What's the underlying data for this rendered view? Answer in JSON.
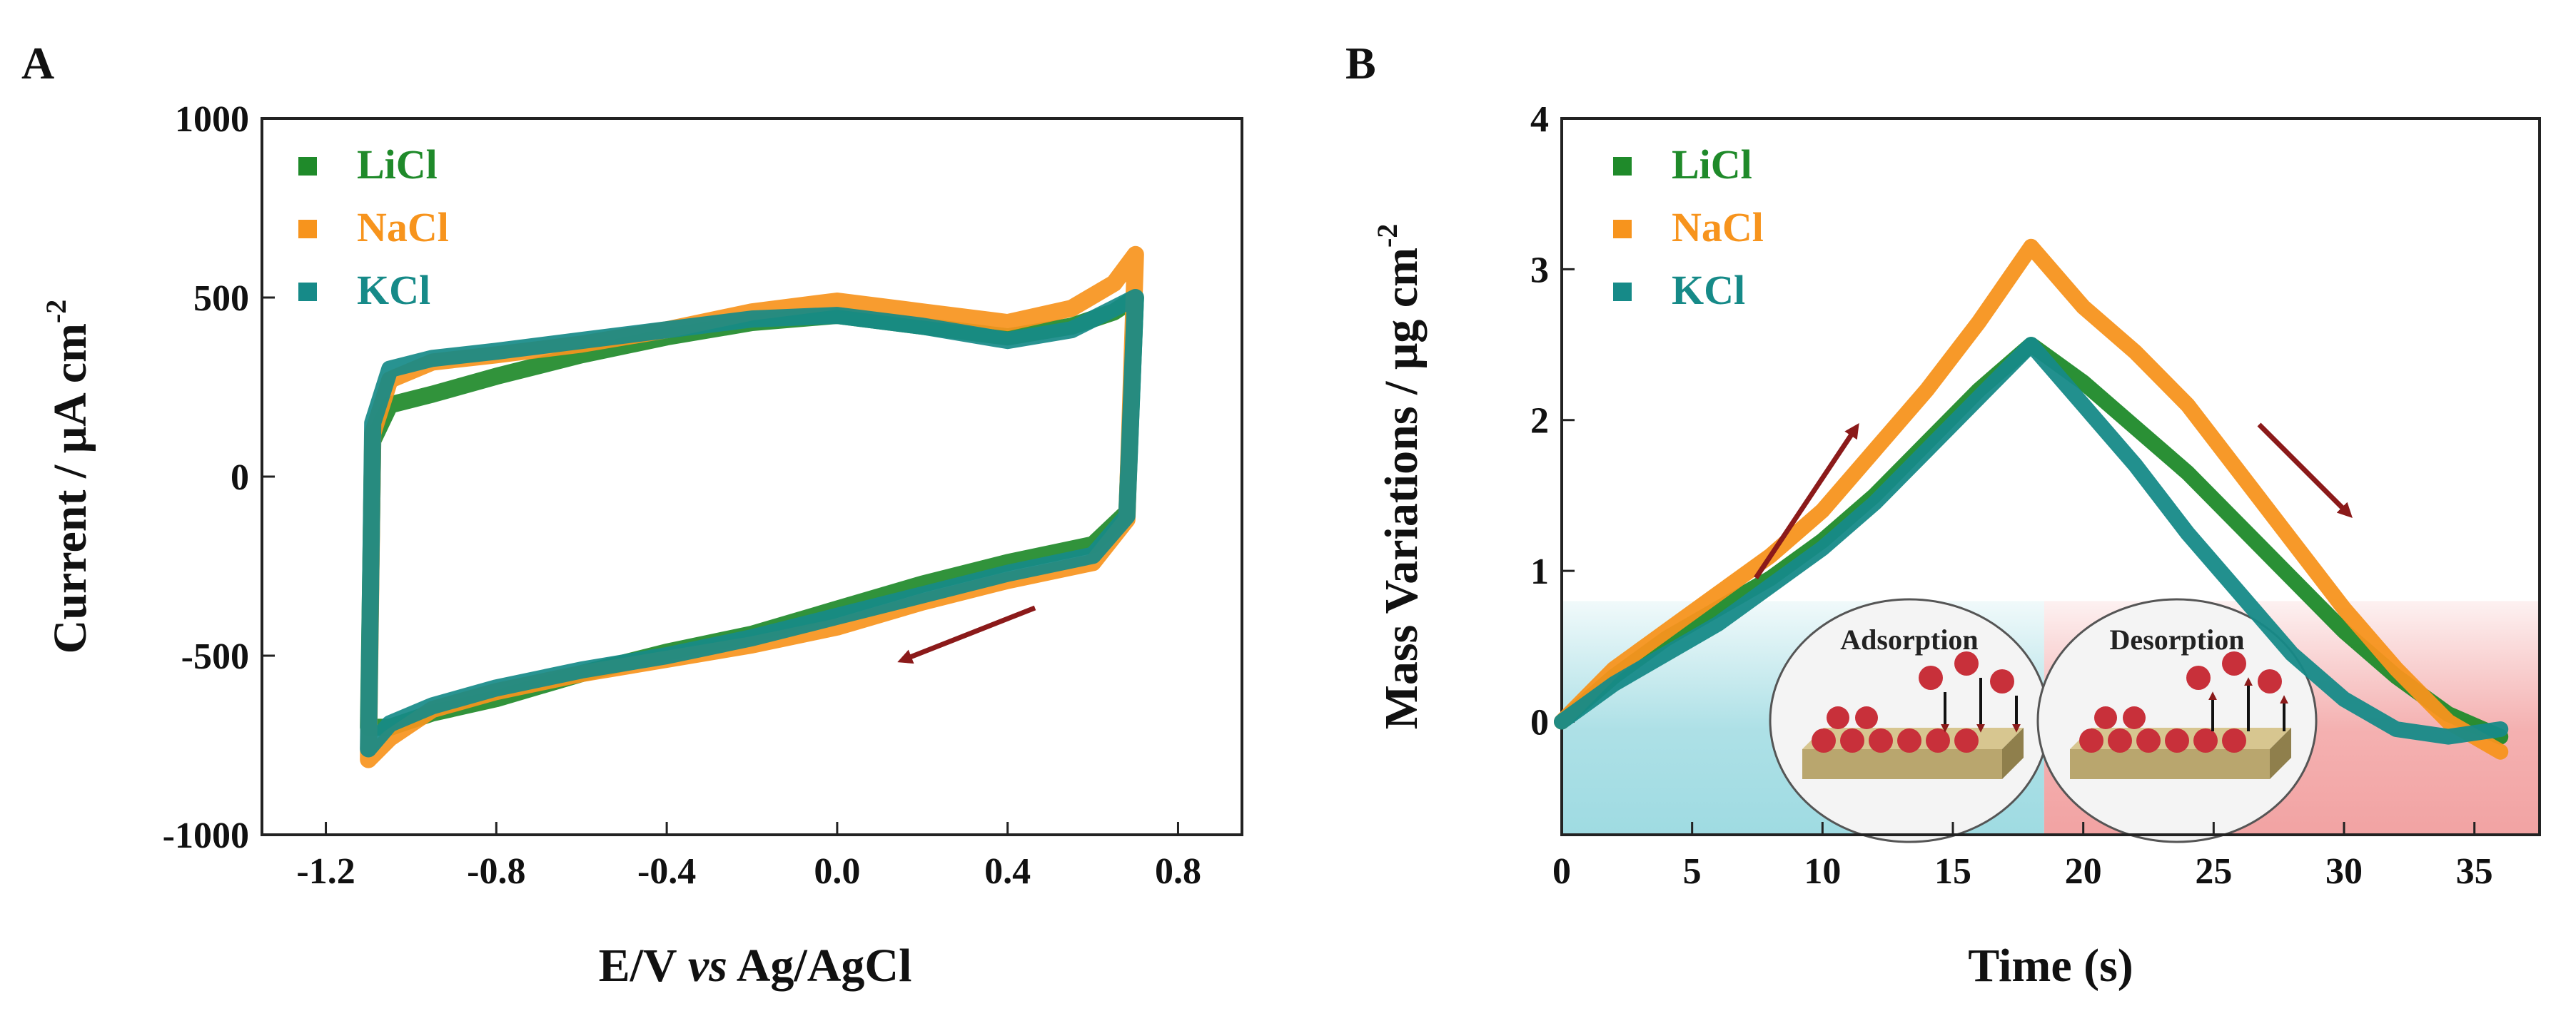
{
  "colors": {
    "licl": "#1f8a2a",
    "nacl": "#f7941d",
    "kcl": "#168a88",
    "arrow": "#8b1a1a",
    "adsorption_bg": "#9fdbe2",
    "desorption_bg": "#f2a3a3",
    "ball": "#c8303a",
    "slab": "#b9a66e"
  },
  "chart_data": [
    {
      "panel": "A",
      "type": "line",
      "subtype": "cyclic-voltammogram",
      "xlabel_parts": [
        "E/V ",
        "vs",
        " Ag/AgCl"
      ],
      "ylabel": "Current / μA cm",
      "ylabel_sup": "-2",
      "xlim": [
        -1.35,
        0.95
      ],
      "ylim": [
        -1000,
        1000
      ],
      "xticks": [
        -1.2,
        -0.8,
        -0.4,
        0.0,
        0.4,
        0.8
      ],
      "xtick_labels": [
        "-1.2",
        "-0.8",
        "-0.4",
        "0.0",
        "0.4",
        "0.8"
      ],
      "yticks": [
        -1000,
        -500,
        0,
        500,
        1000
      ],
      "ytick_labels": [
        "-1000",
        "-500",
        "0",
        "500",
        "1000"
      ],
      "legend_position": "top-left",
      "annotation": "scan-direction arrow pointing left, lower branch",
      "series": [
        {
          "name": "LiCl",
          "color_key": "licl",
          "upper": {
            "x": [
              -1.1,
              -1.09,
              -1.05,
              -0.95,
              -0.8,
              -0.6,
              -0.4,
              -0.2,
              0.0,
              0.2,
              0.4,
              0.55,
              0.65,
              0.7
            ],
            "y": [
              -700,
              100,
              200,
              230,
              280,
              340,
              390,
              430,
              450,
              420,
              390,
              420,
              460,
              500
            ]
          },
          "lower": {
            "x": [
              0.7,
              0.68,
              0.6,
              0.4,
              0.2,
              0.0,
              -0.2,
              -0.4,
              -0.6,
              -0.8,
              -0.95,
              -1.05,
              -1.1
            ],
            "y": [
              500,
              -100,
              -190,
              -240,
              -300,
              -370,
              -440,
              -490,
              -550,
              -620,
              -660,
              -700,
              -700
            ]
          }
        },
        {
          "name": "NaCl",
          "color_key": "nacl",
          "upper": {
            "x": [
              -1.1,
              -1.09,
              -1.05,
              -0.95,
              -0.8,
              -0.6,
              -0.4,
              -0.2,
              0.0,
              0.2,
              0.4,
              0.55,
              0.65,
              0.7
            ],
            "y": [
              -790,
              120,
              270,
              320,
              340,
              370,
              410,
              460,
              490,
              460,
              430,
              470,
              540,
              620
            ]
          },
          "lower": {
            "x": [
              0.7,
              0.68,
              0.6,
              0.4,
              0.2,
              0.0,
              -0.2,
              -0.4,
              -0.6,
              -0.8,
              -0.95,
              -1.05,
              -1.1
            ],
            "y": [
              620,
              -120,
              -240,
              -290,
              -350,
              -420,
              -470,
              -510,
              -550,
              -600,
              -650,
              -730,
              -790
            ]
          }
        },
        {
          "name": "KCl",
          "color_key": "kcl",
          "upper": {
            "x": [
              -1.1,
              -1.09,
              -1.05,
              -0.95,
              -0.8,
              -0.6,
              -0.4,
              -0.2,
              0.0,
              0.2,
              0.4,
              0.55,
              0.65,
              0.7
            ],
            "y": [
              -760,
              150,
              300,
              330,
              350,
              380,
              410,
              440,
              450,
              420,
              380,
              410,
              470,
              500
            ]
          },
          "lower": {
            "x": [
              0.7,
              0.68,
              0.6,
              0.4,
              0.2,
              0.0,
              -0.2,
              -0.4,
              -0.6,
              -0.8,
              -0.95,
              -1.05,
              -1.1
            ],
            "y": [
              500,
              -110,
              -220,
              -270,
              -330,
              -390,
              -450,
              -500,
              -540,
              -590,
              -640,
              -690,
              -760
            ]
          }
        }
      ]
    },
    {
      "panel": "B",
      "type": "line",
      "subtype": "mass-variation",
      "xlabel": "Time (s)",
      "ylabel": "Mass Variations / μg cm",
      "ylabel_sup": "-2",
      "xlim": [
        0,
        37.5
      ],
      "ylim": [
        -0.75,
        4
      ],
      "xticks": [
        0,
        5,
        10,
        15,
        20,
        25,
        30,
        35
      ],
      "xtick_labels": [
        "0",
        "5",
        "10",
        "15",
        "20",
        "25",
        "30",
        "35"
      ],
      "yticks": [
        0,
        1,
        2,
        3,
        4
      ],
      "ytick_labels": [
        "0",
        "1",
        "2",
        "3",
        "4"
      ],
      "legend_position": "top-left",
      "shaded_regions": [
        {
          "label": "Adsorption",
          "x_range": [
            0,
            18.5
          ],
          "y_top": 0.8,
          "color_key": "adsorption_bg"
        },
        {
          "label": "Desorption",
          "x_range": [
            18.5,
            37.5
          ],
          "y_top": 0.8,
          "color_key": "desorption_bg"
        }
      ],
      "annotations": [
        "increasing arrow along rising branch",
        "decreasing arrow along falling branch"
      ],
      "series": [
        {
          "name": "LiCl",
          "color_key": "licl",
          "x": [
            0,
            2,
            4,
            6,
            8,
            10,
            12,
            14,
            16,
            18,
            20,
            22,
            24,
            26,
            28,
            30,
            32,
            34,
            36
          ],
          "y": [
            0.0,
            0.3,
            0.55,
            0.75,
            0.95,
            1.2,
            1.5,
            1.85,
            2.2,
            2.5,
            2.25,
            1.95,
            1.65,
            1.3,
            0.95,
            0.6,
            0.3,
            0.05,
            -0.1
          ]
        },
        {
          "name": "NaCl",
          "color_key": "nacl",
          "x": [
            0,
            2,
            4,
            6,
            8,
            10,
            12,
            14,
            16,
            18,
            20,
            22,
            24,
            26,
            28,
            30,
            32,
            34,
            36
          ],
          "y": [
            0.0,
            0.35,
            0.6,
            0.85,
            1.1,
            1.4,
            1.8,
            2.2,
            2.65,
            3.15,
            2.75,
            2.45,
            2.1,
            1.65,
            1.2,
            0.75,
            0.35,
            0.0,
            -0.2
          ]
        },
        {
          "name": "KCl",
          "color_key": "kcl",
          "x": [
            0,
            2,
            4,
            6,
            8,
            10,
            12,
            14,
            16,
            18,
            20,
            22,
            24,
            26,
            28,
            30,
            32,
            34,
            36
          ],
          "y": [
            0.0,
            0.25,
            0.45,
            0.65,
            0.9,
            1.15,
            1.45,
            1.8,
            2.15,
            2.5,
            2.1,
            1.7,
            1.25,
            0.85,
            0.45,
            0.15,
            -0.05,
            -0.1,
            -0.05
          ]
        }
      ]
    }
  ]
}
